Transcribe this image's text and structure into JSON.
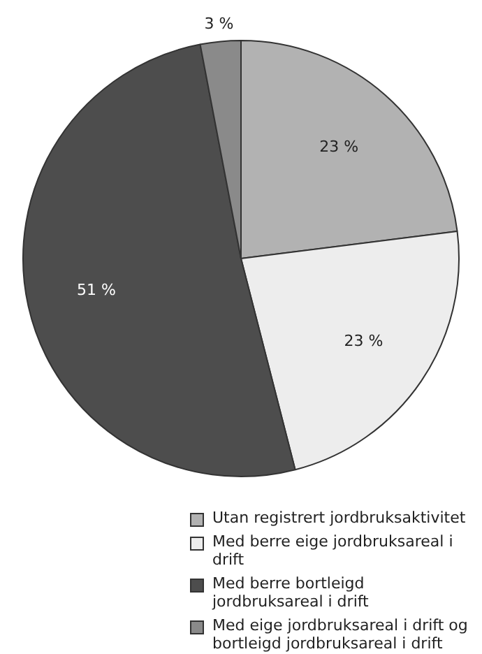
{
  "chart_data": {
    "type": "pie",
    "categories": [
      "Utan registrert jordbruksaktivitet",
      "Med berre eige jordbruksareal i drift",
      "Med berre bortleigd jordbruksareal i drift",
      "Med eige jordbruksareal i drift og bortleigd jordbruksareal i drift"
    ],
    "values": [
      23,
      23,
      51,
      3
    ],
    "colors": [
      "#b2b2b2",
      "#ededed",
      "#4d4d4d",
      "#8a8a8a"
    ],
    "value_labels": [
      "23 %",
      "23 %",
      "51 %",
      "3 %"
    ],
    "legend": "bottom"
  }
}
